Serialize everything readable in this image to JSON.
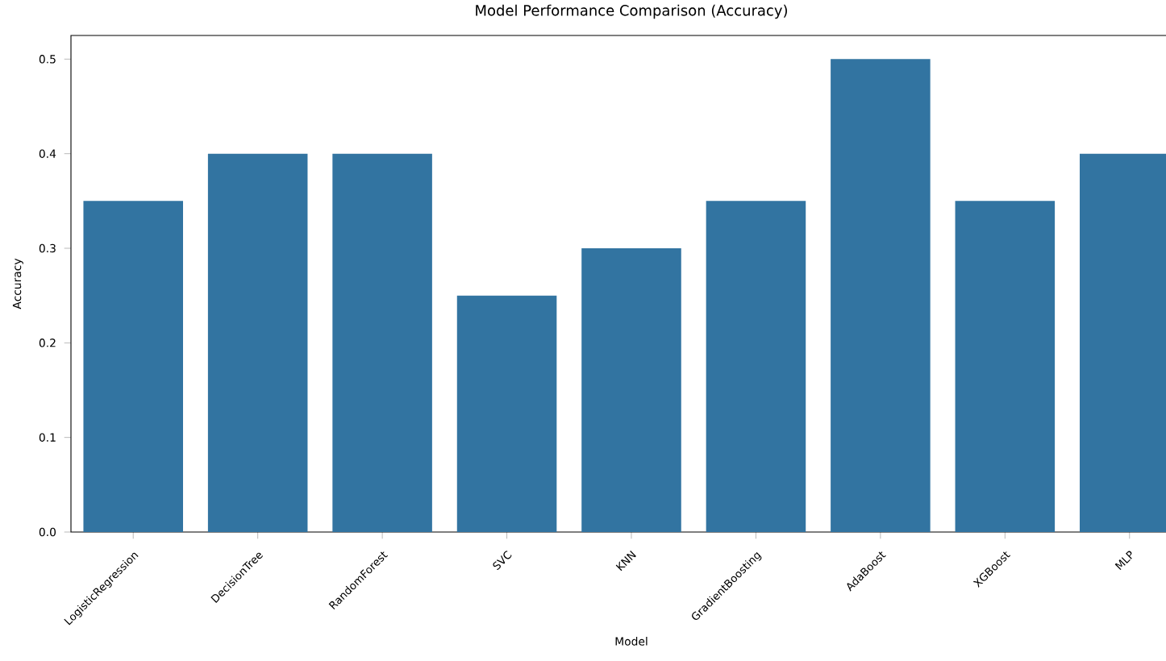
{
  "chart_data": {
    "type": "bar",
    "title": "Model Performance Comparison (Accuracy)",
    "xlabel": "Model",
    "ylabel": "Accuracy",
    "categories": [
      "LogisticRegression",
      "DecisionTree",
      "RandomForest",
      "SVC",
      "KNN",
      "GradientBoosting",
      "AdaBoost",
      "XGBoost",
      "MLP"
    ],
    "values": [
      0.35,
      0.4,
      0.4,
      0.25,
      0.3,
      0.35,
      0.5,
      0.35,
      0.4
    ],
    "color": "#3274a1",
    "ylim": [
      0,
      0.525
    ],
    "yticks": [
      {
        "value": 0,
        "label": "0.0"
      },
      0.1,
      0.2,
      0.3,
      0.4,
      0.5
    ],
    "grid": false
  }
}
